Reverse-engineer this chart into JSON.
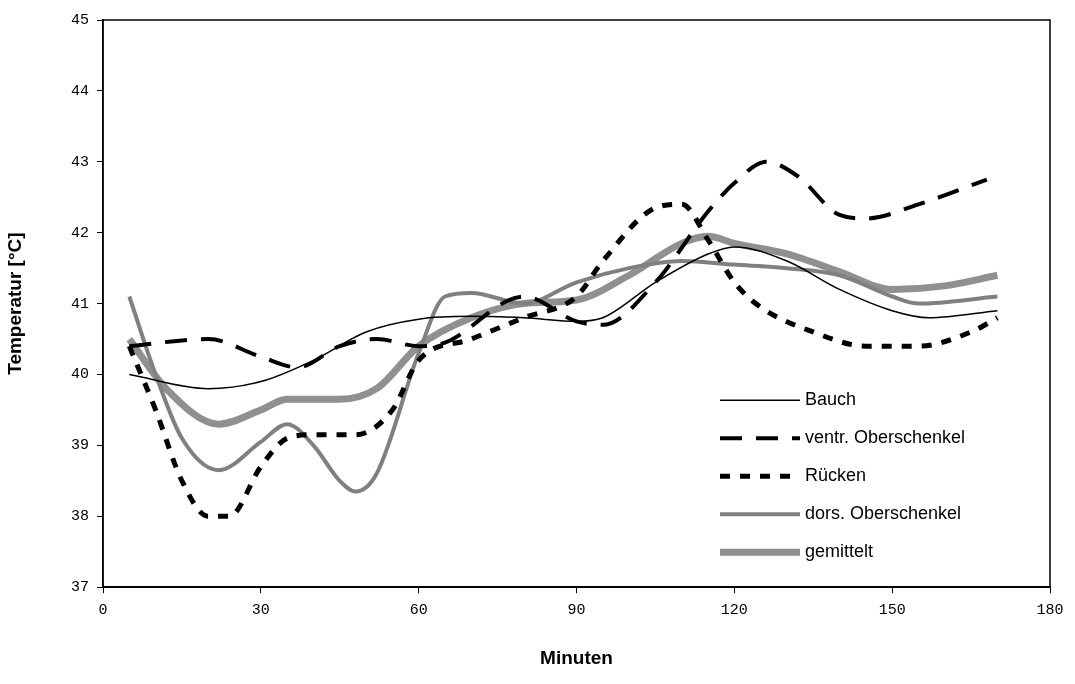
{
  "chart_data": {
    "type": "line",
    "xlabel": "Minuten",
    "ylabel": "Temperatur [°C]",
    "xlim": [
      0,
      180
    ],
    "xticks": [
      0,
      30,
      60,
      90,
      120,
      150,
      180
    ],
    "ylim": [
      37,
      45
    ],
    "yticks": [
      37,
      38,
      39,
      40,
      41,
      42,
      43,
      44,
      45
    ],
    "grid": false,
    "legend": "bottom right",
    "marker": "none",
    "series": [
      {
        "name": "Bauch",
        "color": "#000000",
        "line_style": "solid",
        "x": [
          5,
          20,
          30,
          40,
          50,
          60,
          70,
          80,
          90,
          95,
          105,
          115,
          120,
          130,
          140,
          150,
          157,
          170
        ],
        "values": [
          40.0,
          39.8,
          39.9,
          40.2,
          40.6,
          40.78,
          40.82,
          40.8,
          40.75,
          40.8,
          41.3,
          41.7,
          41.8,
          41.6,
          41.2,
          40.9,
          40.8,
          40.9
        ]
      },
      {
        "name": "ventr. Oberschenkel",
        "color": "#000000",
        "line_style": "dashed",
        "x": [
          5,
          20,
          30,
          37,
          45,
          52,
          60,
          65,
          80,
          90,
          95,
          105,
          115,
          120,
          126,
          132,
          140,
          145,
          155,
          168
        ],
        "values": [
          40.4,
          40.5,
          40.25,
          40.1,
          40.4,
          40.5,
          40.4,
          40.45,
          41.1,
          40.75,
          40.7,
          41.3,
          42.3,
          42.7,
          43.0,
          42.8,
          42.25,
          42.2,
          42.4,
          42.75
        ]
      },
      {
        "name": "Rücken",
        "color": "#000000",
        "line_style": "dotted",
        "x": [
          5,
          10,
          15,
          20,
          24,
          30,
          35,
          40,
          48,
          55,
          60,
          70,
          80,
          90,
          95,
          105,
          110,
          115,
          120,
          125,
          135,
          145,
          155,
          165,
          170
        ],
        "values": [
          40.4,
          39.5,
          38.5,
          38.0,
          38.0,
          38.7,
          39.1,
          39.15,
          39.15,
          39.5,
          40.2,
          40.5,
          40.8,
          41.1,
          41.6,
          42.35,
          42.4,
          41.9,
          41.3,
          40.95,
          40.6,
          40.4,
          40.4,
          40.6,
          40.8
        ]
      },
      {
        "name": "dors. Oberschenkel",
        "color": "#808080",
        "line_style": "solid",
        "x": [
          5,
          10,
          15,
          22,
          30,
          35,
          40,
          45,
          48,
          52,
          60,
          65,
          70,
          80,
          90,
          100,
          110,
          120,
          130,
          140,
          150,
          155,
          170
        ],
        "values": [
          41.1,
          40.0,
          39.1,
          38.65,
          39.05,
          39.3,
          39.0,
          38.5,
          38.35,
          38.6,
          40.3,
          41.1,
          41.15,
          41.0,
          41.3,
          41.5,
          41.6,
          41.55,
          41.5,
          41.4,
          41.1,
          41.0,
          41.1
        ]
      },
      {
        "name": "gemittelt",
        "color": "#909090",
        "line_style": "solid",
        "x": [
          5,
          12,
          22,
          30,
          35,
          45,
          52,
          60,
          70,
          80,
          90,
          100,
          110,
          115,
          120,
          130,
          140,
          150,
          160,
          170
        ],
        "values": [
          40.5,
          39.8,
          39.3,
          39.5,
          39.65,
          39.65,
          39.8,
          40.4,
          40.8,
          41.0,
          41.05,
          41.4,
          41.85,
          41.95,
          41.85,
          41.7,
          41.45,
          41.2,
          41.25,
          41.4
        ]
      }
    ]
  }
}
